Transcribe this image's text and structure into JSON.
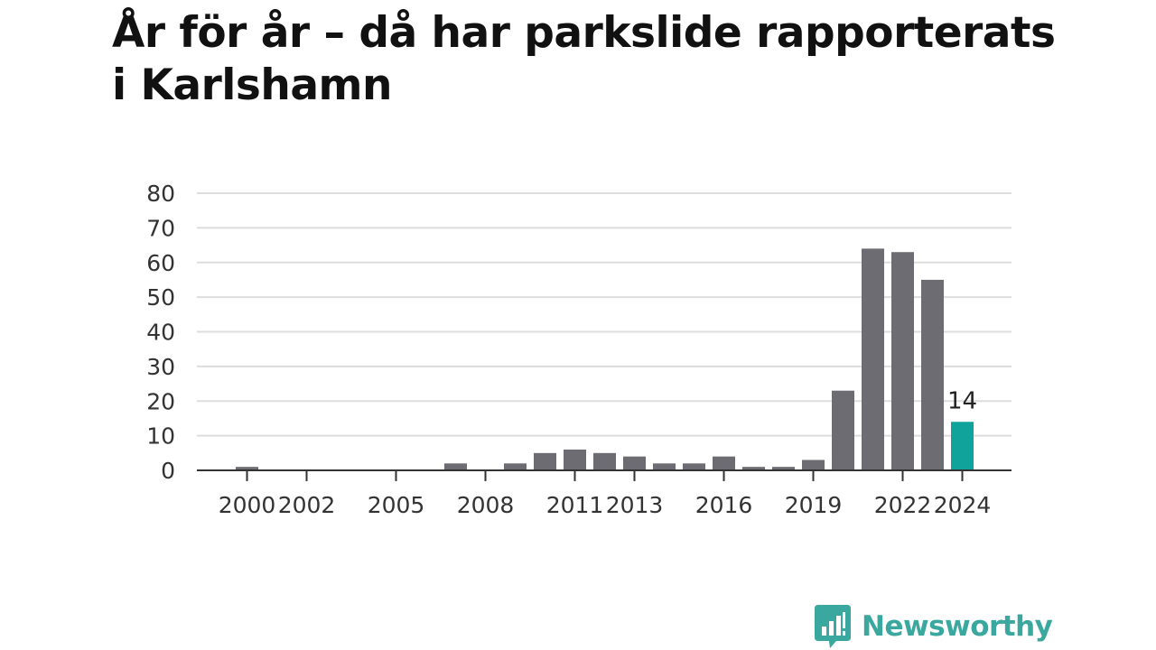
{
  "title": "År för år – då har parkslide rapporterats i Karlshamn",
  "brand": {
    "name": "Newsworthy",
    "logo_color": "#3aa89e"
  },
  "colors": {
    "bar": "#6d6c72",
    "highlight": "#0fa39b",
    "grid": "#dddddd",
    "axis": "#333333"
  },
  "chart_data": {
    "type": "bar",
    "title": "År för år – då har parkslide rapporterats i Karlshamn",
    "xlabel": "",
    "ylabel": "",
    "ylim": [
      0,
      80
    ],
    "yticks": [
      0,
      10,
      20,
      30,
      40,
      50,
      60,
      70,
      80
    ],
    "grid": true,
    "legend": "none",
    "categories": [
      2000,
      2001,
      2002,
      2003,
      2004,
      2005,
      2006,
      2007,
      2008,
      2009,
      2010,
      2011,
      2012,
      2013,
      2014,
      2015,
      2016,
      2017,
      2018,
      2019,
      2020,
      2021,
      2022,
      2023,
      2024
    ],
    "values": [
      1,
      0,
      0,
      0,
      0,
      0,
      0,
      2,
      0,
      2,
      5,
      6,
      5,
      4,
      2,
      2,
      4,
      1,
      1,
      3,
      23,
      64,
      63,
      55,
      14
    ],
    "xtick_labels": [
      "2000",
      "2002",
      "2005",
      "2008",
      "2011",
      "2013",
      "2016",
      "2019",
      "2022",
      "2024"
    ],
    "highlight": {
      "category": 2024,
      "label": "14"
    }
  }
}
